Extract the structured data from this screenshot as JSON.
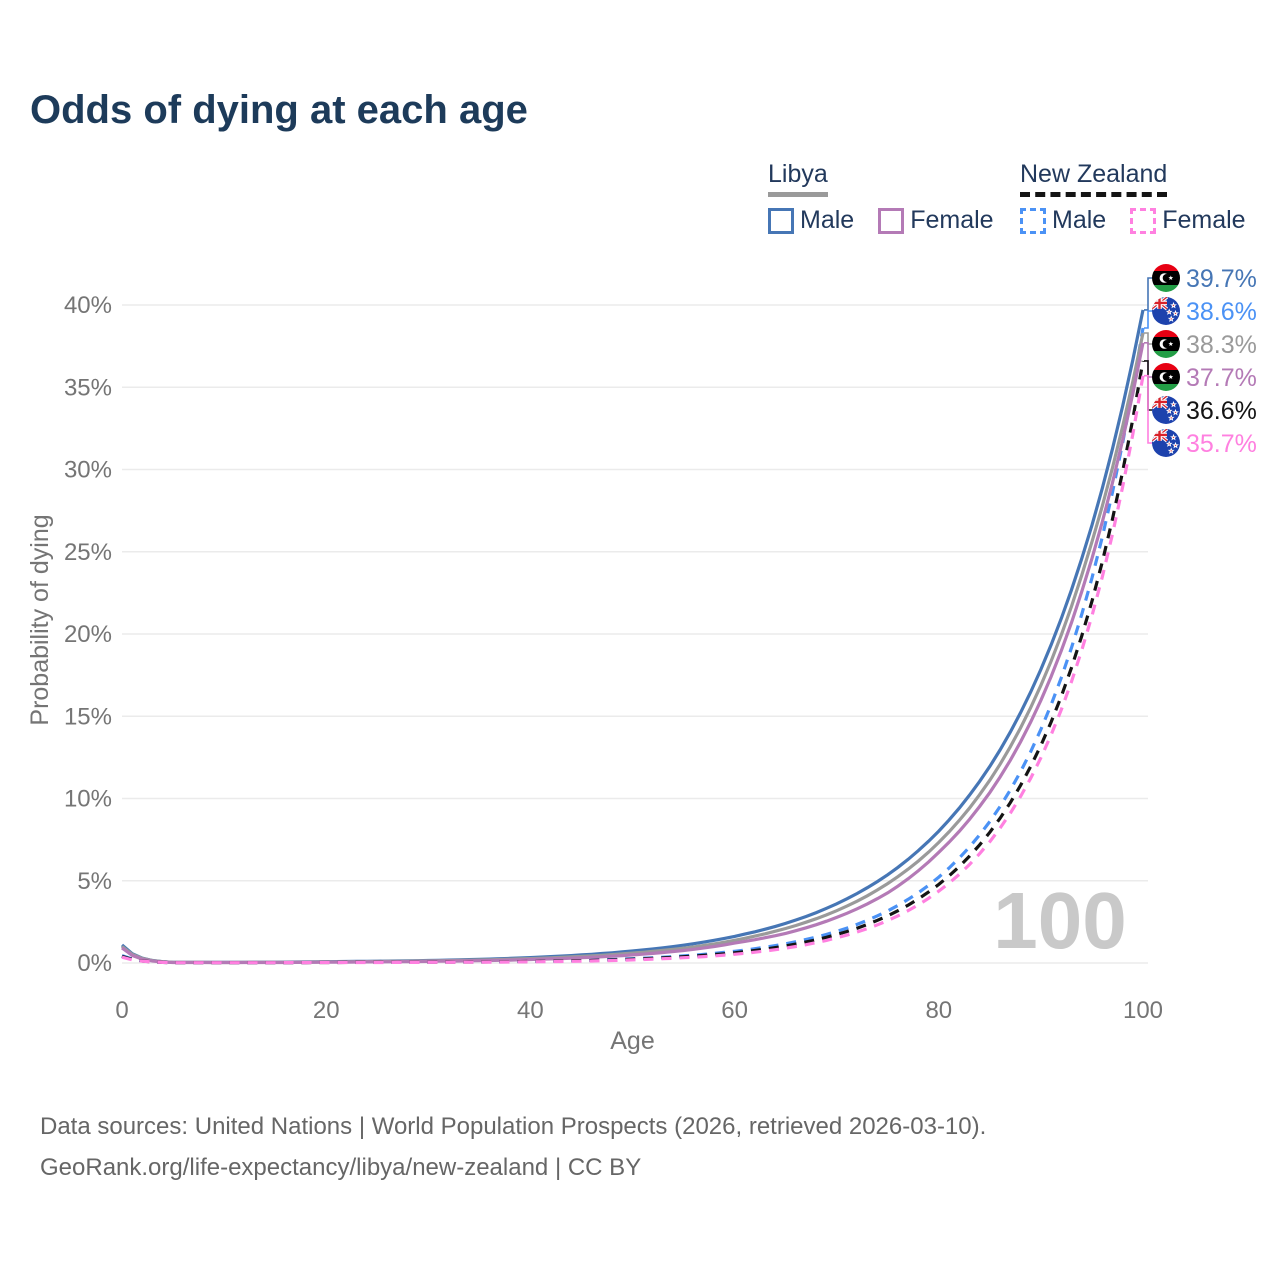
{
  "title": "Odds of dying at each age",
  "legend": {
    "groups": [
      {
        "label": "Libya",
        "underline_color": "#9a9a9a",
        "underline_style": "solid",
        "items": [
          {
            "label": "Male",
            "color": "#4676b5",
            "dash": false
          },
          {
            "label": "Female",
            "color": "#b47ab6",
            "dash": false
          }
        ]
      },
      {
        "label": "New Zealand",
        "underline_color": "#141414",
        "underline_style": "dashed",
        "items": [
          {
            "label": "Male",
            "color": "#4b92f5",
            "dash": true
          },
          {
            "label": "Female",
            "color": "#ff80e0",
            "dash": true
          }
        ]
      }
    ]
  },
  "chart_data": {
    "type": "line",
    "title": "Odds of dying at each age",
    "xlabel": "Age",
    "ylabel": "Probability of dying",
    "xlim": [
      0,
      100
    ],
    "ylim": [
      0,
      42.5
    ],
    "xticks": [
      0,
      20,
      40,
      60,
      80,
      100
    ],
    "yticks": [
      0,
      5,
      10,
      15,
      20,
      25,
      30,
      35,
      40
    ],
    "grid": "horizontal",
    "legend_position": "top-right",
    "watermark": "100",
    "x": [
      0,
      5,
      10,
      15,
      20,
      25,
      30,
      35,
      40,
      45,
      50,
      55,
      60,
      65,
      70,
      75,
      80,
      85,
      90,
      95,
      100
    ],
    "series": [
      {
        "name": "Libya Male",
        "country": "Libya",
        "sex": "Male",
        "color": "#4676b5",
        "dash": "solid",
        "flag": "libya",
        "end_label": "39.7%",
        "values": [
          1.1,
          0.04,
          0.04,
          0.05,
          0.08,
          0.11,
          0.15,
          0.22,
          0.33,
          0.49,
          0.73,
          1.08,
          1.62,
          2.41,
          3.6,
          5.37,
          8.02,
          11.96,
          17.85,
          26.62,
          39.7
        ]
      },
      {
        "name": "New Zealand Male",
        "country": "New Zealand",
        "sex": "Male",
        "color": "#4b92f5",
        "dash": "dashed",
        "flag": "new-zealand",
        "end_label": "38.6%",
        "values": [
          0.45,
          0.01,
          0.01,
          0.02,
          0.04,
          0.05,
          0.06,
          0.08,
          0.1,
          0.16,
          0.26,
          0.43,
          0.71,
          1.17,
          1.92,
          3.17,
          5.22,
          8.61,
          14.2,
          23.41,
          38.6
        ]
      },
      {
        "name": "Libya Both sexes",
        "country": "Libya",
        "sex": "Both",
        "color": "#9a9a9a",
        "dash": "solid",
        "flag": "libya",
        "end_label": "38.3%",
        "values": [
          1.0,
          0.04,
          0.03,
          0.04,
          0.07,
          0.09,
          0.13,
          0.18,
          0.27,
          0.4,
          0.6,
          0.9,
          1.38,
          2.1,
          3.18,
          4.83,
          7.33,
          11.12,
          16.88,
          25.61,
          38.3
        ]
      },
      {
        "name": "Libya Female",
        "country": "Libya",
        "sex": "Female",
        "color": "#b47ab6",
        "dash": "solid",
        "flag": "libya",
        "end_label": "37.7%",
        "values": [
          0.92,
          0.03,
          0.03,
          0.03,
          0.05,
          0.07,
          0.1,
          0.14,
          0.21,
          0.32,
          0.49,
          0.76,
          1.21,
          1.8,
          2.77,
          4.27,
          6.73,
          10.37,
          15.97,
          24.6,
          37.7
        ]
      },
      {
        "name": "New Zealand Both sexes",
        "country": "New Zealand",
        "sex": "Both",
        "color": "#141414",
        "dash": "dashed",
        "flag": "new-zealand",
        "end_label": "36.6%",
        "values": [
          0.4,
          0.01,
          0.01,
          0.02,
          0.03,
          0.04,
          0.05,
          0.06,
          0.09,
          0.14,
          0.23,
          0.38,
          0.62,
          1.04,
          1.73,
          2.87,
          4.78,
          7.95,
          13.23,
          22.0,
          36.6
        ]
      },
      {
        "name": "New Zealand Female",
        "country": "New Zealand",
        "sex": "Female",
        "color": "#ff80e0",
        "dash": "dashed",
        "flag": "new-zealand",
        "end_label": "35.7%",
        "values": [
          0.35,
          0.01,
          0.01,
          0.01,
          0.03,
          0.03,
          0.04,
          0.05,
          0.07,
          0.11,
          0.19,
          0.32,
          0.53,
          0.9,
          1.53,
          2.58,
          4.37,
          7.38,
          12.48,
          21.11,
          35.7
        ]
      }
    ]
  },
  "footer": {
    "line1": "Data sources: United Nations | World Population Prospects (2026, retrieved 2026-03-10).",
    "line2": "GeoRank.org/life-expectancy/libya/new-zealand | CC BY"
  }
}
